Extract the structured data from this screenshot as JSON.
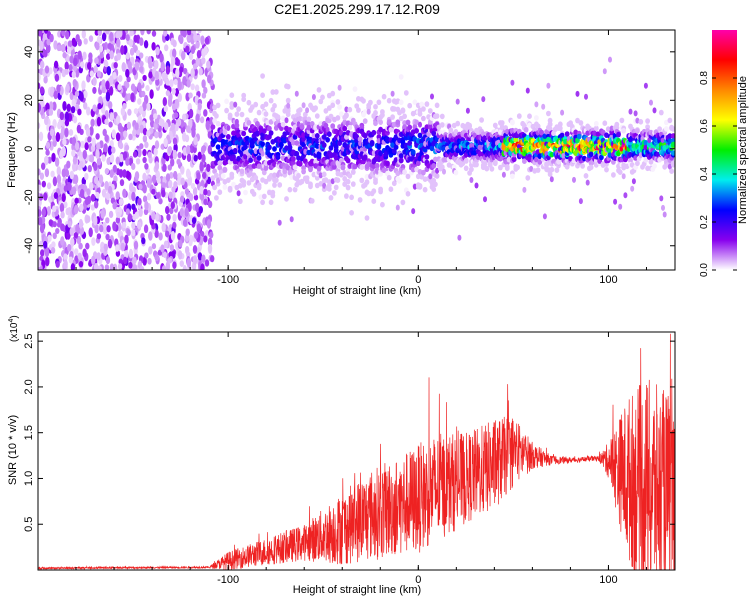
{
  "title": "C2E1.2025.299.17.12.R09",
  "colors": {
    "signal_red": "#ee2222",
    "axis": "#000000",
    "background": "#ffffff"
  },
  "chart_data": [
    {
      "type": "heatmap",
      "name": "spectrogram",
      "title": "C2E1.2025.299.17.12.R09",
      "xlabel": "Height of straight line (km)",
      "ylabel": "Frequency (Hz)",
      "xlim": [
        -200,
        135
      ],
      "ylim": [
        -50,
        49
      ],
      "x_ticks": [
        -100,
        0,
        100
      ],
      "x_tick_labels": [
        "-100",
        "0",
        "100"
      ],
      "y_ticks": [
        -40,
        -20,
        0,
        20,
        40
      ],
      "y_tick_labels": [
        "-40",
        "-20",
        "0",
        "20",
        "40"
      ],
      "noise_region_x": [
        -200,
        -108
      ],
      "signal_center_hz": 1,
      "signal_halfwidth_hz": [
        6,
        3
      ],
      "colorbar": {
        "label": "Normalized spectral amplitude",
        "range": [
          0,
          1
        ],
        "ticks": [
          0.0,
          0.2,
          0.4,
          0.6,
          0.8
        ],
        "tick_labels": [
          "0.0",
          "0.2",
          "0.4",
          "0.6",
          "0.8"
        ],
        "colormap": [
          "#ffffff",
          "#8800ee",
          "#0000ff",
          "#00eeee",
          "#00ee00",
          "#ffff00",
          "#ff8800",
          "#ff0000",
          "#ff00aa"
        ]
      }
    },
    {
      "type": "line",
      "name": "snr",
      "xlabel": "Height of straight line (km)",
      "ylabel": "SNR (10 * v/v)",
      "scale_label": "(x10",
      "scale_exponent": "4",
      "scale_close": ")",
      "xlim": [
        -200,
        135
      ],
      "ylim": [
        0,
        2.6
      ],
      "x_ticks": [
        -100,
        0,
        100
      ],
      "x_tick_labels": [
        "-100",
        "0",
        "100"
      ],
      "y_ticks": [
        0.5,
        1.0,
        1.5,
        2.0,
        2.5
      ],
      "y_tick_labels": [
        "0.5",
        "1.0",
        "1.5",
        "2.0",
        "2.5"
      ],
      "series": [
        {
          "name": "SNR",
          "color": "#ee2222",
          "envelope_x": [
            -200,
            -110,
            -100,
            -80,
            -60,
            -40,
            -25,
            -10,
            0,
            10,
            25,
            40,
            50,
            60,
            70,
            80,
            95,
            100,
            110,
            120,
            135
          ],
          "envelope_mean": [
            0.02,
            0.03,
            0.1,
            0.2,
            0.3,
            0.45,
            0.6,
            0.7,
            0.78,
            0.9,
            1.0,
            1.15,
            1.3,
            1.25,
            1.2,
            1.2,
            1.22,
            1.2,
            1.0,
            0.9,
            0.8
          ],
          "envelope_spread": [
            0.01,
            0.01,
            0.1,
            0.15,
            0.2,
            0.4,
            0.5,
            0.55,
            0.6,
            0.6,
            0.5,
            0.5,
            0.4,
            0.15,
            0.05,
            0.03,
            0.03,
            0.2,
            0.9,
            1.2,
            1.1
          ]
        }
      ]
    }
  ]
}
